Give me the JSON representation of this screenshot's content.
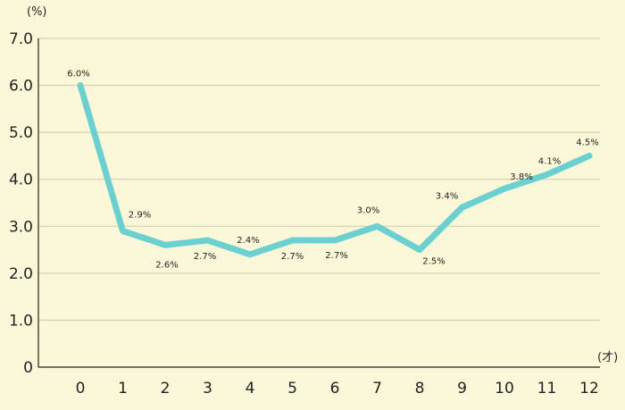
{
  "chart_data": {
    "type": "line",
    "title": "",
    "xlabel": "",
    "ylabel": "",
    "y_unit_label": "(%)",
    "x_unit_label": "(才)",
    "x": [
      0,
      1,
      2,
      3,
      4,
      5,
      6,
      7,
      8,
      9,
      10,
      11,
      12
    ],
    "x_tick_labels": [
      "0",
      "1",
      "2",
      "3",
      "4",
      "5",
      "6",
      "7",
      "8",
      "9",
      "10",
      "11",
      "12"
    ],
    "y_tick_labels": [
      "0",
      "1.0",
      "2.0",
      "3.0",
      "4.0",
      "5.0",
      "6.0",
      "7.0"
    ],
    "series": [
      {
        "values": [
          6.0,
          2.9,
          2.6,
          2.7,
          2.4,
          2.7,
          2.7,
          3.0,
          2.5,
          3.4,
          3.8,
          4.1,
          4.5
        ],
        "data_labels": [
          "6.0%",
          "2.9%",
          "2.6%",
          "2.7%",
          "2.4%",
          "2.7%",
          "2.7%",
          "3.0%",
          "2.5%",
          "3.4%",
          "3.8%",
          "4.1%",
          "4.5%"
        ],
        "color": "#6ccfd0"
      }
    ],
    "ylim": [
      0,
      7
    ],
    "grid": true,
    "grid_color": "#cfcaa8",
    "background": "#fbf8d9"
  }
}
